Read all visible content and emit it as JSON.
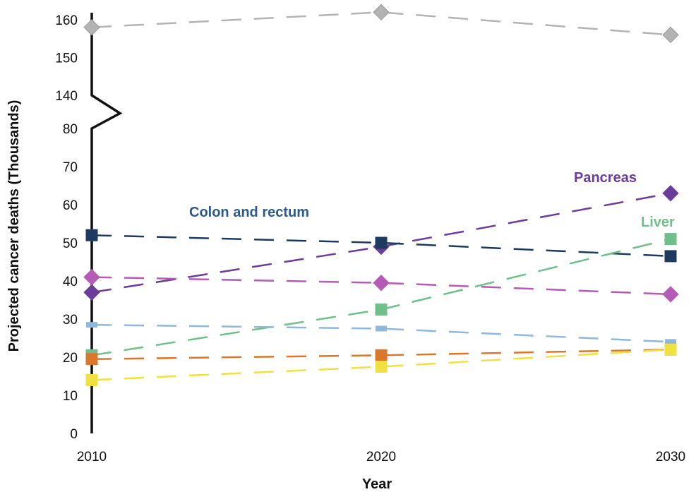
{
  "chart_data": {
    "type": "line",
    "xlabel": "Year",
    "ylabel": "Projected cancer deaths (Thousands)",
    "x_ticks": [
      "2010",
      "2020",
      "2030"
    ],
    "y_ticks": [
      "0",
      "10",
      "20",
      "30",
      "40",
      "50",
      "60",
      "70",
      "80",
      "140",
      "150",
      "160"
    ],
    "axis_break": {
      "from": 80,
      "to": 140
    },
    "x": [
      2010,
      2020,
      2030
    ],
    "series": [
      {
        "name": "",
        "color": "#b3b3b3",
        "marker": "diamond",
        "values": [
          158,
          162,
          156
        ]
      },
      {
        "name": "Pancreas",
        "color": "#6a3d9a",
        "marker": "diamond",
        "values": [
          37,
          49,
          63
        ]
      },
      {
        "name": "Colon and rectum",
        "color": "#1f3a5f",
        "marker": "square",
        "values": [
          52,
          50,
          46.5
        ]
      },
      {
        "name": "Liver",
        "color": "#6fbf8a",
        "marker": "square",
        "values": [
          20.5,
          32.5,
          51
        ]
      },
      {
        "name": "",
        "color": "#b55ab5",
        "marker": "diamond",
        "values": [
          41,
          39.5,
          36.5
        ]
      },
      {
        "name": "",
        "color": "#8fb8dc",
        "marker": "rect",
        "values": [
          28.5,
          27.5,
          24
        ]
      },
      {
        "name": "",
        "color": "#d9782d",
        "marker": "square",
        "values": [
          19.5,
          20.5,
          22
        ]
      },
      {
        "name": "",
        "color": "#f0e040",
        "marker": "square",
        "values": [
          14,
          17.5,
          22
        ]
      }
    ]
  },
  "labels": {
    "colon": "Colon and rectum",
    "pancreas": "Pancreas",
    "liver": "Liver"
  }
}
